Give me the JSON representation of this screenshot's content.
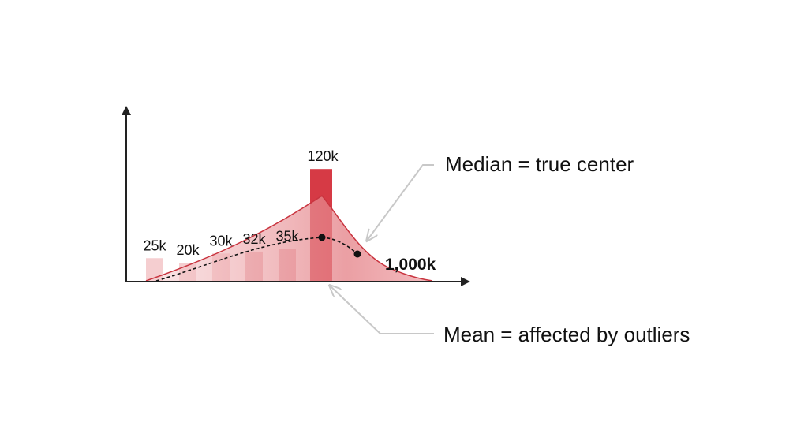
{
  "chart_data": {
    "type": "bar",
    "categories": [
      "",
      "",
      "",
      "",
      "",
      ""
    ],
    "values": [
      25,
      20,
      30,
      32,
      35,
      120
    ],
    "bar_labels": [
      "25k",
      "20k",
      "30k",
      "32k",
      "35k",
      "120k"
    ],
    "outlier_label": "1,000k",
    "annotations": {
      "median": "Median = true center",
      "mean": "Mean = affected by outliers"
    },
    "title": "",
    "xlabel": "",
    "ylabel": "",
    "grid": false,
    "legend": "none",
    "colors": {
      "bar_light": "#f3c6c8",
      "bar_mid": "#e9a7ab",
      "bar_highlight": "#d63a45",
      "curve_fill": "#e47f85",
      "curve_stroke": "#c9343f",
      "axis": "#222222",
      "arrow": "#c8c8c8"
    }
  }
}
